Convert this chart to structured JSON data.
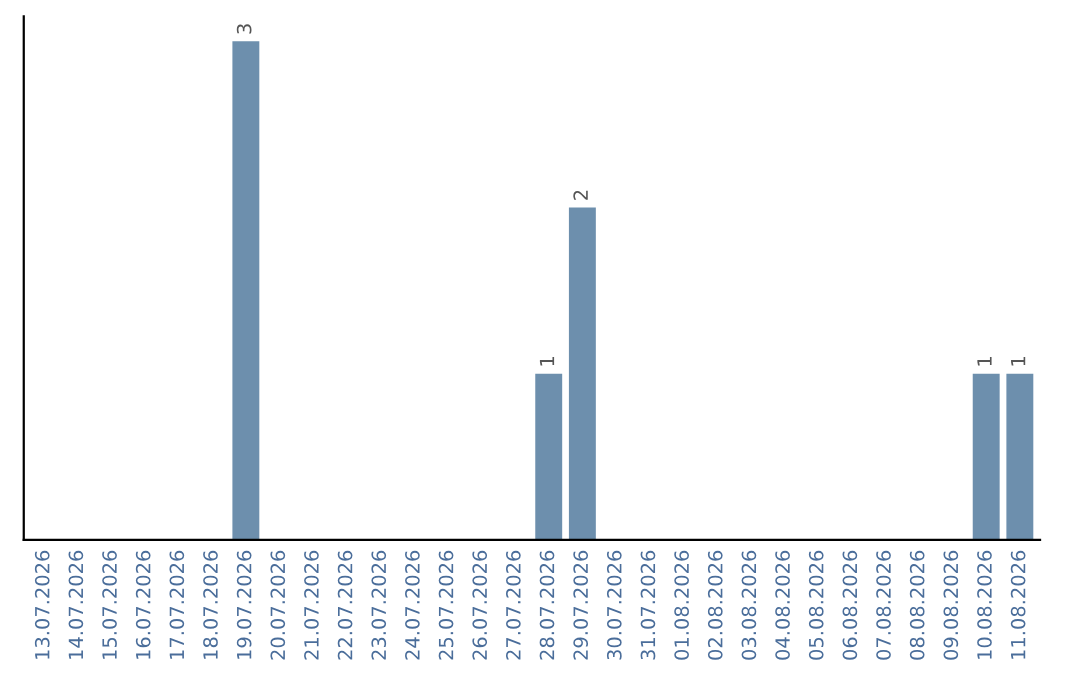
{
  "chart_data": {
    "type": "bar",
    "categories": [
      "13.07.2026",
      "14.07.2026",
      "15.07.2026",
      "16.07.2026",
      "17.07.2026",
      "18.07.2026",
      "19.07.2026",
      "20.07.2026",
      "21.07.2026",
      "22.07.2026",
      "23.07.2026",
      "24.07.2026",
      "25.07.2026",
      "26.07.2026",
      "27.07.2026",
      "28.07.2026",
      "29.07.2026",
      "30.07.2026",
      "31.07.2026",
      "01.08.2026",
      "02.08.2026",
      "03.08.2026",
      "04.08.2026",
      "05.08.2026",
      "06.08.2026",
      "07.08.2026",
      "08.08.2026",
      "09.08.2026",
      "10.08.2026",
      "11.08.2026"
    ],
    "values": [
      0,
      0,
      0,
      0,
      0,
      0,
      3,
      0,
      0,
      0,
      0,
      0,
      0,
      0,
      0,
      1,
      2,
      0,
      0,
      0,
      0,
      0,
      0,
      0,
      0,
      0,
      0,
      0,
      1,
      1
    ],
    "color": "#6d8fad",
    "value_labels": [
      null,
      null,
      null,
      null,
      null,
      null,
      "3",
      null,
      null,
      null,
      null,
      null,
      null,
      null,
      null,
      "1",
      "2",
      null,
      null,
      null,
      null,
      null,
      null,
      null,
      null,
      null,
      null,
      null,
      "1",
      "1"
    ],
    "tick_labels": "x",
    "grid": false,
    "legend": false
  }
}
